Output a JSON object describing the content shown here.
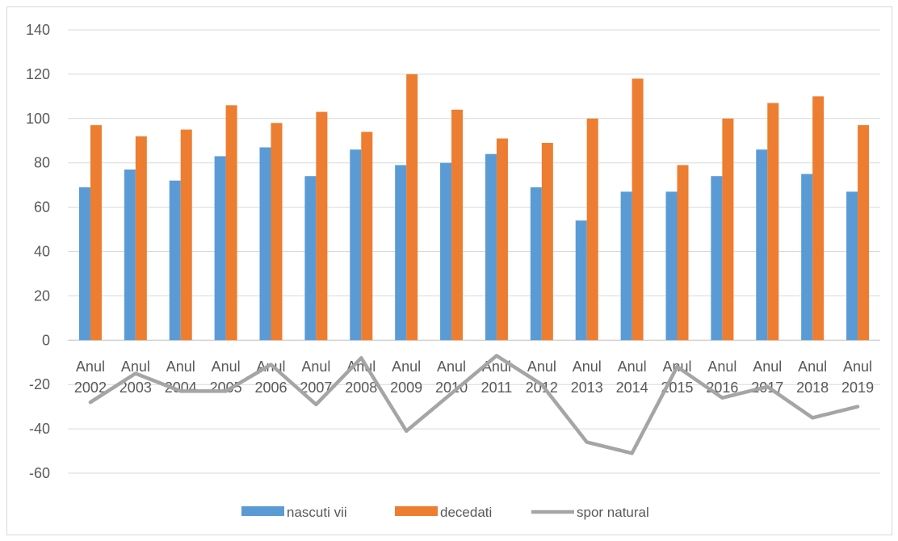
{
  "chart_data": {
    "type": "bar",
    "categories": [
      "Anul 2002",
      "Anul 2003",
      "Anul 2004",
      "Anul 2005",
      "Anul 2006",
      "Anul 2007",
      "Anul 2008",
      "Anul 2009",
      "Anul 2010",
      "Anul 2011",
      "Anul 2012",
      "Anul 2013",
      "Anul 2014",
      "Anul 2015",
      "Anul 2016",
      "Anul 2017",
      "Anul 2018",
      "Anul 2019"
    ],
    "series": [
      {
        "name": "nascuti vii",
        "type": "bar",
        "color": "#5b9bd5",
        "values": [
          69,
          77,
          72,
          83,
          87,
          74,
          86,
          79,
          80,
          84,
          69,
          54,
          67,
          67,
          74,
          86,
          75,
          67
        ]
      },
      {
        "name": "decedati",
        "type": "bar",
        "color": "#ed7d31",
        "values": [
          97,
          92,
          95,
          106,
          98,
          103,
          94,
          120,
          104,
          91,
          89,
          100,
          118,
          79,
          100,
          107,
          110,
          97
        ]
      },
      {
        "name": "spor natural",
        "type": "line",
        "color": "#a5a5a5",
        "values": [
          -28,
          -15,
          -23,
          -23,
          -11,
          -29,
          -8,
          -41,
          -24,
          -7,
          -20,
          -46,
          -51,
          -12,
          -26,
          -21,
          -35,
          -30
        ]
      }
    ],
    "ylim": [
      -60,
      140
    ],
    "yticks": [
      140,
      120,
      100,
      80,
      60,
      40,
      20,
      0,
      -20,
      -40,
      -60
    ],
    "grid": true,
    "legend": "bottom"
  }
}
